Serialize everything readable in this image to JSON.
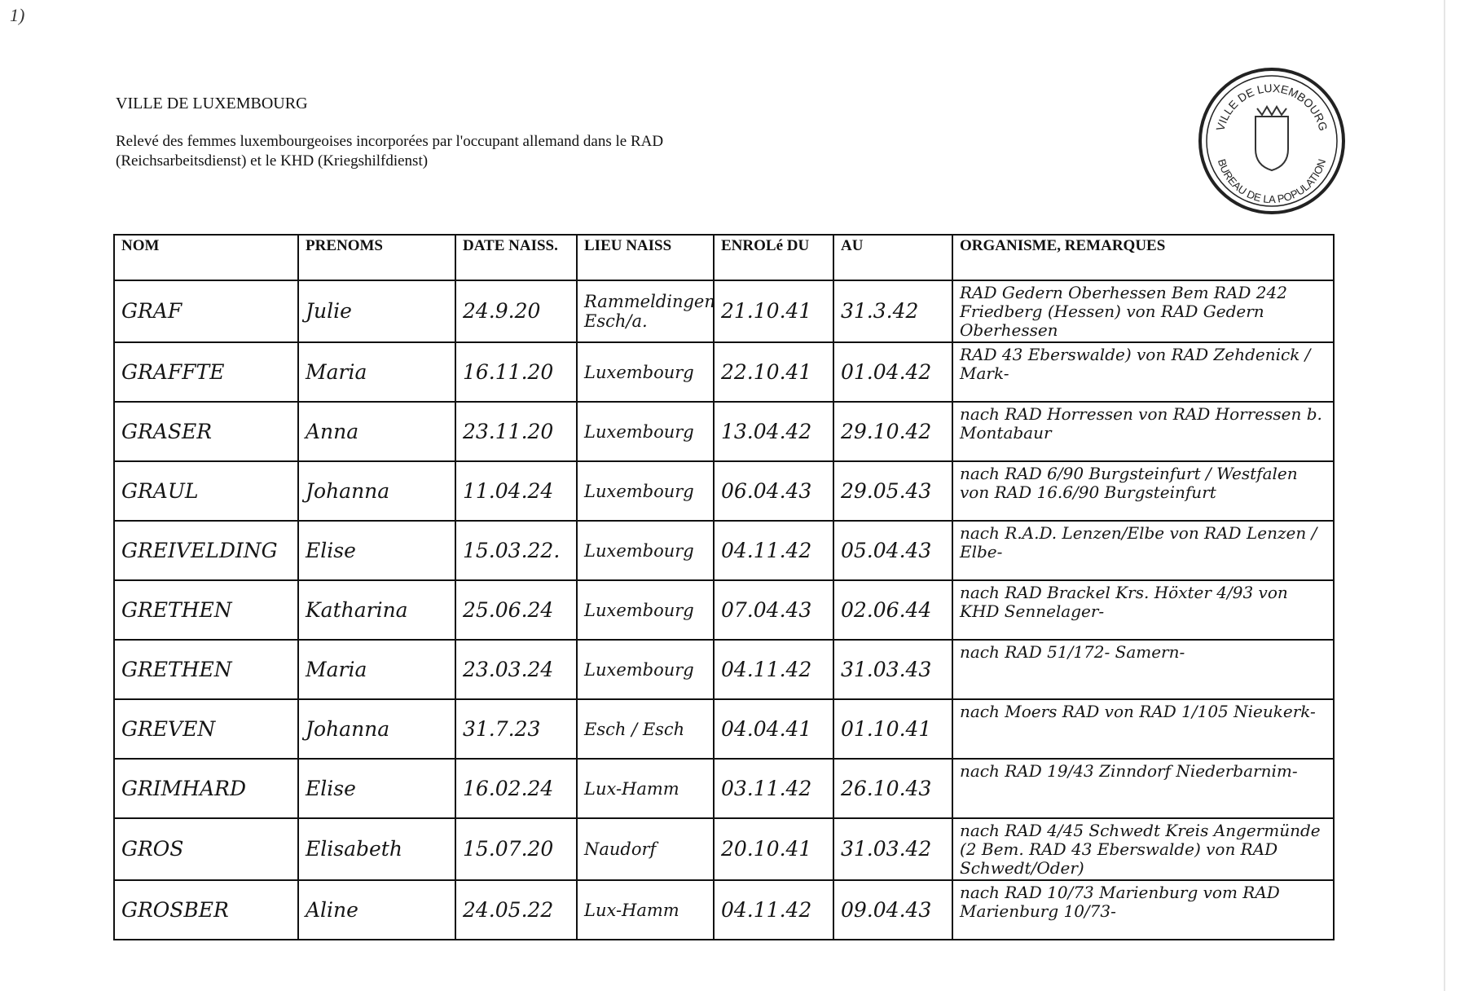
{
  "page": {
    "corner_mark": "1)",
    "title": "VILLE DE LUXEMBOURG",
    "subtitle": "Relevé des femmes luxembourgeoises incorporées par l'occupant allemand dans le RAD (Reichsarbeitsdienst) et le KHD (Kriegshilfdienst)",
    "stamp_text_top": "VILLE DE LUXEMBOURG",
    "stamp_text_bottom": "BUREAU DE LA POPULATION"
  },
  "table": {
    "headers": [
      "NOM",
      "PRENOMS",
      "DATE NAISS.",
      "LIEU NAISS",
      "ENROLé DU",
      "AU",
      "ORGANISME, REMARQUES"
    ],
    "rows": [
      {
        "nom": "GRAF",
        "prenoms": "Julie",
        "date": "24.9.20",
        "lieu": "Rammeldingen Esch/a.",
        "du": "21.10.41",
        "au": "31.3.42",
        "remarques": "RAD Gedern Oberhessen Bem RAD 242 Friedberg (Hessen) von RAD Gedern Oberhessen"
      },
      {
        "nom": "GRAFFTE",
        "prenoms": "Maria",
        "date": "16.11.20",
        "lieu": "Luxembourg",
        "du": "22.10.41",
        "au": "01.04.42",
        "remarques": "RAD 43 Eberswalde) von RAD Zehdenick / Mark-"
      },
      {
        "nom": "GRASER",
        "prenoms": "Anna",
        "date": "23.11.20",
        "lieu": "Luxembourg",
        "du": "13.04.42",
        "au": "29.10.42",
        "remarques": "nach RAD Horressen von RAD Horressen b. Montabaur"
      },
      {
        "nom": "GRAUL",
        "prenoms": "Johanna",
        "date": "11.04.24",
        "lieu": "Luxembourg",
        "du": "06.04.43",
        "au": "29.05.43",
        "remarques": "nach RAD 6/90 Burgsteinfurt / Westfalen von RAD 16.6/90 Burgsteinfurt"
      },
      {
        "nom": "GREIVELDING",
        "prenoms": "Elise",
        "date": "15.03.22.",
        "lieu": "Luxembourg",
        "du": "04.11.42",
        "au": "05.04.43",
        "remarques": "nach R.A.D. Lenzen/Elbe von RAD Lenzen / Elbe-"
      },
      {
        "nom": "GRETHEN",
        "prenoms": "Katharina",
        "date": "25.06.24",
        "lieu": "Luxembourg",
        "du": "07.04.43",
        "au": "02.06.44",
        "remarques": "nach RAD Brackel Krs. Höxter 4/93 von KHD Sennelager-"
      },
      {
        "nom": "GRETHEN",
        "prenoms": "Maria",
        "date": "23.03.24",
        "lieu": "Luxembourg",
        "du": "04.11.42",
        "au": "31.03.43",
        "remarques": "nach RAD 51/172- Samern-"
      },
      {
        "nom": "GREVEN",
        "prenoms": "Johanna",
        "date": "31.7.23",
        "lieu": "Esch / Esch",
        "du": "04.04.41",
        "au": "01.10.41",
        "remarques": "nach Moers RAD von RAD 1/105 Nieukerk-"
      },
      {
        "nom": "GRIMHARD",
        "prenoms": "Elise",
        "date": "16.02.24",
        "lieu": "Lux-Hamm",
        "du": "03.11.42",
        "au": "26.10.43",
        "remarques": "nach RAD 19/43 Zinndorf Niederbarnim-"
      },
      {
        "nom": "GROS",
        "prenoms": "Elisabeth",
        "date": "15.07.20",
        "lieu": "Naudorf",
        "du": "20.10.41",
        "au": "31.03.42",
        "remarques": "nach RAD 4/45 Schwedt Kreis Angermünde (2 Bem. RAD 43 Eberswalde) von RAD Schwedt/Oder)"
      },
      {
        "nom": "GROSBER",
        "prenoms": "Aline",
        "date": "24.05.22",
        "lieu": "Lux-Hamm",
        "du": "04.11.42",
        "au": "09.04.43",
        "remarques": "nach RAD 10/73 Marienburg vom RAD Marienburg 10/73-"
      }
    ]
  }
}
